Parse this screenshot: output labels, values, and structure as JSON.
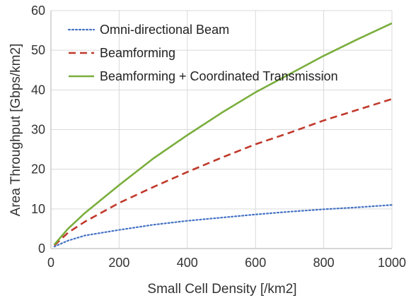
{
  "chart_data": {
    "type": "line",
    "title": "",
    "xlabel": "Small Cell Density [/km2]",
    "ylabel": "Area Throughput [Gbps/km2]",
    "xlim": [
      0,
      1000
    ],
    "ylim": [
      0,
      60
    ],
    "x_ticks": [
      "0",
      "200",
      "400",
      "600",
      "800",
      "1000"
    ],
    "y_ticks": [
      "0",
      "10",
      "20",
      "30",
      "40",
      "50",
      "60"
    ],
    "grid": true,
    "legend_position": "top-left",
    "series": [
      {
        "name": "Omni-directional Beam",
        "color": "#4472C4",
        "style": "dotted",
        "x": [
          10,
          50,
          100,
          200,
          300,
          400,
          500,
          600,
          700,
          800,
          900,
          1000
        ],
        "y": [
          0.5,
          2.0,
          3.3,
          4.7,
          6.0,
          7.0,
          7.8,
          8.6,
          9.3,
          9.9,
          10.4,
          11.0
        ]
      },
      {
        "name": "Beamforming",
        "color": "#C0392B",
        "style": "dashed",
        "x": [
          10,
          50,
          100,
          200,
          300,
          400,
          500,
          600,
          700,
          800,
          900,
          1000
        ],
        "y": [
          0.8,
          4.0,
          6.8,
          11.5,
          15.5,
          19.3,
          22.9,
          26.3,
          29.2,
          32.3,
          35.0,
          37.7
        ]
      },
      {
        "name": "Beamforming + Coordinated Transmission",
        "color": "#7AAE3D",
        "style": "solid",
        "x": [
          10,
          50,
          100,
          200,
          300,
          400,
          500,
          600,
          700,
          800,
          900,
          1000
        ],
        "y": [
          1.0,
          5.0,
          9.0,
          16.0,
          22.7,
          28.6,
          34.2,
          39.4,
          44.0,
          48.6,
          52.8,
          56.8
        ]
      }
    ]
  }
}
